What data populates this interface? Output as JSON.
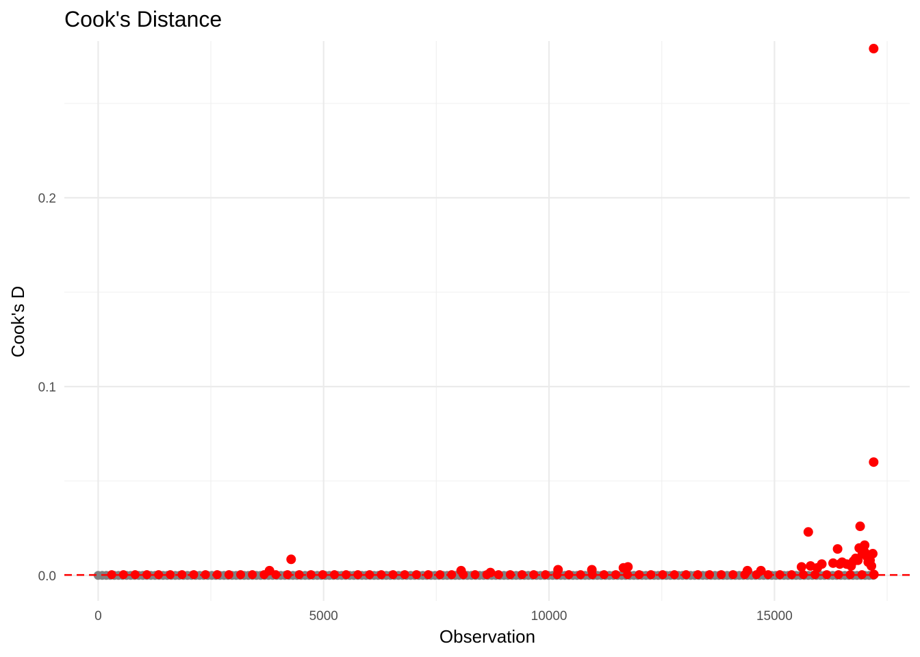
{
  "chart_data": {
    "type": "scatter",
    "title": "Cook's Distance",
    "xlabel": "Observation",
    "ylabel": "Cook's D",
    "xlim": [
      -750,
      18000
    ],
    "ylim": [
      -0.0135,
      0.283
    ],
    "x_ticks": [
      0,
      5000,
      10000,
      15000
    ],
    "x_tick_labels": [
      "0",
      "5000",
      "10000",
      "15000"
    ],
    "y_ticks": [
      0.0,
      0.1,
      0.2
    ],
    "y_tick_labels": [
      "0.0",
      "0.1",
      "0.2"
    ],
    "grid": true,
    "threshold": 0.000235,
    "colors": {
      "influential": "#ff0000",
      "normal": "#808080",
      "threshold_line": "#ff0000"
    },
    "baseline_x_range": [
      0,
      17200
    ],
    "series": [
      {
        "group": "influential",
        "x": [
          3800,
          4280,
          8050,
          8700,
          10200,
          10950,
          11650,
          11750,
          14400,
          14700,
          15600,
          15750,
          15800,
          15950,
          16050,
          16300,
          16400,
          16450,
          16500,
          16600,
          16700,
          16750,
          16800,
          16850,
          16880,
          16900,
          16950,
          16970,
          17000,
          17010,
          17050,
          17080,
          17100,
          17120,
          17150,
          17180,
          17200,
          17200,
          17205
        ],
        "y": [
          0.0025,
          0.0085,
          0.0025,
          0.0015,
          0.003,
          0.003,
          0.004,
          0.0045,
          0.0025,
          0.0025,
          0.0045,
          0.023,
          0.005,
          0.004,
          0.006,
          0.0065,
          0.014,
          0.006,
          0.007,
          0.006,
          0.005,
          0.0075,
          0.009,
          0.008,
          0.0145,
          0.026,
          0.0115,
          0.013,
          0.016,
          0.012,
          0.01,
          0.007,
          0.009,
          0.008,
          0.005,
          0.0115,
          0.06,
          0.279,
          0.0005
        ]
      }
    ]
  }
}
